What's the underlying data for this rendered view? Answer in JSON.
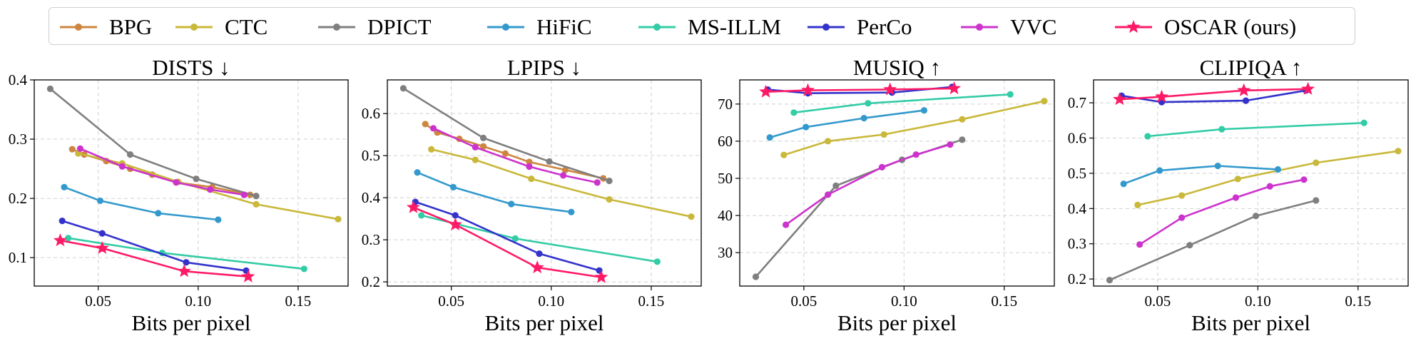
{
  "legend": [
    {
      "name": "BPG",
      "color": "#cd853f",
      "marker": "circle"
    },
    {
      "name": "CTC",
      "color": "#c9b83a",
      "marker": "circle"
    },
    {
      "name": "DPICT",
      "color": "#7f7f7f",
      "marker": "circle"
    },
    {
      "name": "HiFiC",
      "color": "#3399cc",
      "marker": "circle"
    },
    {
      "name": "MS-ILLM",
      "color": "#33cca6",
      "marker": "circle"
    },
    {
      "name": "PerCo",
      "color": "#3333cc",
      "marker": "circle"
    },
    {
      "name": "VVC",
      "color": "#cc33cc",
      "marker": "circle"
    },
    {
      "name": "OSCAR (ours)",
      "color": "#ff1a66",
      "marker": "star"
    }
  ],
  "chart_data": [
    {
      "type": "line",
      "title": "DISTS ↓",
      "xlabel": "Bits per pixel",
      "ylabel": "",
      "xlim": [
        0.018,
        0.175
      ],
      "ylim": [
        0.052,
        0.4
      ],
      "xticks": [
        0.05,
        0.1,
        0.15
      ],
      "xtick_labels": [
        "0.05",
        "0.10",
        "0.15"
      ],
      "yticks": [
        0.1,
        0.2,
        0.3,
        0.4
      ],
      "ytick_labels": [
        "0.1",
        "0.2",
        "0.3",
        "0.4"
      ],
      "grid": true,
      "series": [
        {
          "name": "BPG",
          "x": [
            0.037,
            0.043,
            0.054,
            0.066,
            0.077,
            0.089,
            0.107,
            0.126
          ],
          "y": [
            0.283,
            0.274,
            0.263,
            0.25,
            0.24,
            0.227,
            0.219,
            0.206
          ]
        },
        {
          "name": "CTC",
          "x": [
            0.04,
            0.062,
            0.09,
            0.129,
            0.17
          ],
          "y": [
            0.276,
            0.259,
            0.228,
            0.19,
            0.165
          ]
        },
        {
          "name": "DPICT",
          "x": [
            0.026,
            0.066,
            0.099,
            0.129
          ],
          "y": [
            0.385,
            0.274,
            0.233,
            0.204
          ]
        },
        {
          "name": "HiFiC",
          "x": [
            0.033,
            0.051,
            0.08,
            0.11
          ],
          "y": [
            0.219,
            0.196,
            0.175,
            0.164
          ]
        },
        {
          "name": "MS-ILLM",
          "x": [
            0.035,
            0.082,
            0.153
          ],
          "y": [
            0.133,
            0.108,
            0.081
          ]
        },
        {
          "name": "PerCo",
          "x": [
            0.032,
            0.052,
            0.094,
            0.124
          ],
          "y": [
            0.162,
            0.141,
            0.092,
            0.078
          ]
        },
        {
          "name": "VVC",
          "x": [
            0.041,
            0.062,
            0.089,
            0.106,
            0.123
          ],
          "y": [
            0.284,
            0.254,
            0.227,
            0.215,
            0.206
          ]
        },
        {
          "name": "OSCAR (ours)",
          "x": [
            0.031,
            0.052,
            0.093,
            0.125
          ],
          "y": [
            0.129,
            0.116,
            0.077,
            0.068
          ]
        }
      ]
    },
    {
      "type": "line",
      "title": "LPIPS ↓",
      "xlabel": "Bits per pixel",
      "ylabel": "",
      "xlim": [
        0.018,
        0.175
      ],
      "ylim": [
        0.19,
        0.68
      ],
      "xticks": [
        0.05,
        0.1,
        0.15
      ],
      "xtick_labels": [
        "0.05",
        "0.10",
        "0.15"
      ],
      "yticks": [
        0.2,
        0.3,
        0.4,
        0.5,
        0.6
      ],
      "ytick_labels": [
        "0.2",
        "0.3",
        "0.4",
        "0.5",
        "0.6"
      ],
      "grid": true,
      "series": [
        {
          "name": "BPG",
          "x": [
            0.037,
            0.043,
            0.054,
            0.066,
            0.077,
            0.089,
            0.107,
            0.126
          ],
          "y": [
            0.575,
            0.555,
            0.54,
            0.522,
            0.505,
            0.485,
            0.466,
            0.446
          ]
        },
        {
          "name": "CTC",
          "x": [
            0.04,
            0.062,
            0.09,
            0.129,
            0.17
          ],
          "y": [
            0.515,
            0.49,
            0.445,
            0.396,
            0.355
          ]
        },
        {
          "name": "DPICT",
          "x": [
            0.026,
            0.066,
            0.099,
            0.129
          ],
          "y": [
            0.66,
            0.542,
            0.486,
            0.44
          ]
        },
        {
          "name": "HiFiC",
          "x": [
            0.033,
            0.051,
            0.08,
            0.11
          ],
          "y": [
            0.46,
            0.425,
            0.385,
            0.366
          ]
        },
        {
          "name": "MS-ILLM",
          "x": [
            0.035,
            0.082,
            0.153
          ],
          "y": [
            0.358,
            0.303,
            0.248
          ]
        },
        {
          "name": "PerCo",
          "x": [
            0.032,
            0.052,
            0.094,
            0.124
          ],
          "y": [
            0.39,
            0.358,
            0.267,
            0.227
          ]
        },
        {
          "name": "VVC",
          "x": [
            0.041,
            0.062,
            0.089,
            0.106,
            0.123
          ],
          "y": [
            0.565,
            0.52,
            0.474,
            0.453,
            0.436
          ]
        },
        {
          "name": "OSCAR (ours)",
          "x": [
            0.031,
            0.052,
            0.093,
            0.125
          ],
          "y": [
            0.377,
            0.336,
            0.234,
            0.211
          ]
        }
      ]
    },
    {
      "type": "line",
      "title": "MUSIQ ↑",
      "xlabel": "Bits per pixel",
      "ylabel": "",
      "xlim": [
        0.018,
        0.175
      ],
      "ylim": [
        21,
        76.5
      ],
      "xticks": [
        0.05,
        0.1,
        0.15
      ],
      "xtick_labels": [
        "0.05",
        "0.10",
        "0.15"
      ],
      "yticks": [
        30,
        40,
        50,
        60,
        70
      ],
      "ytick_labels": [
        "30",
        "40",
        "50",
        "60",
        "70"
      ],
      "grid": true,
      "series": [
        {
          "name": "CTC",
          "x": [
            0.04,
            0.062,
            0.09,
            0.129,
            0.17
          ],
          "y": [
            56.3,
            60.0,
            61.8,
            65.9,
            70.8
          ]
        },
        {
          "name": "DPICT",
          "x": [
            0.026,
            0.066,
            0.099,
            0.129
          ],
          "y": [
            23.5,
            48.0,
            55.0,
            60.4
          ]
        },
        {
          "name": "HiFiC",
          "x": [
            0.033,
            0.051,
            0.08,
            0.11
          ],
          "y": [
            61.0,
            63.8,
            66.2,
            68.3
          ]
        },
        {
          "name": "MS-ILLM",
          "x": [
            0.045,
            0.082,
            0.153
          ],
          "y": [
            67.7,
            70.2,
            72.6
          ]
        },
        {
          "name": "PerCo",
          "x": [
            0.032,
            0.052,
            0.094,
            0.124
          ],
          "y": [
            73.9,
            72.9,
            73.1,
            74.6
          ]
        },
        {
          "name": "VVC",
          "x": [
            0.041,
            0.062,
            0.089,
            0.106,
            0.123
          ],
          "y": [
            37.5,
            45.6,
            53.0,
            56.4,
            59.1
          ]
        },
        {
          "name": "OSCAR (ours)",
          "x": [
            0.031,
            0.052,
            0.093,
            0.125
          ],
          "y": [
            73.3,
            73.7,
            73.9,
            74.2
          ]
        }
      ]
    },
    {
      "type": "line",
      "title": "CLIPIQA ↑",
      "xlabel": "Bits per pixel",
      "ylabel": "",
      "xlim": [
        0.018,
        0.175
      ],
      "ylim": [
        0.18,
        0.765
      ],
      "xticks": [
        0.05,
        0.1,
        0.15
      ],
      "xtick_labels": [
        "0.05",
        "0.10",
        "0.15"
      ],
      "yticks": [
        0.2,
        0.3,
        0.4,
        0.5,
        0.6,
        0.7
      ],
      "ytick_labels": [
        "0.2",
        "0.3",
        "0.4",
        "0.5",
        "0.6",
        "0.7"
      ],
      "grid": true,
      "series": [
        {
          "name": "CTC",
          "x": [
            0.04,
            0.062,
            0.09,
            0.129,
            0.17
          ],
          "y": [
            0.41,
            0.437,
            0.484,
            0.53,
            0.563
          ]
        },
        {
          "name": "DPICT",
          "x": [
            0.026,
            0.066,
            0.099,
            0.129
          ],
          "y": [
            0.197,
            0.296,
            0.379,
            0.423
          ]
        },
        {
          "name": "HiFiC",
          "x": [
            0.033,
            0.051,
            0.08,
            0.11
          ],
          "y": [
            0.47,
            0.508,
            0.521,
            0.511
          ]
        },
        {
          "name": "MS-ILLM",
          "x": [
            0.045,
            0.082,
            0.153
          ],
          "y": [
            0.605,
            0.625,
            0.643
          ]
        },
        {
          "name": "PerCo",
          "x": [
            0.032,
            0.052,
            0.094,
            0.124
          ],
          "y": [
            0.72,
            0.702,
            0.706,
            0.735
          ]
        },
        {
          "name": "VVC",
          "x": [
            0.041,
            0.062,
            0.089,
            0.106,
            0.123
          ],
          "y": [
            0.298,
            0.374,
            0.431,
            0.463,
            0.482
          ]
        },
        {
          "name": "OSCAR (ours)",
          "x": [
            0.031,
            0.052,
            0.093,
            0.125
          ],
          "y": [
            0.71,
            0.717,
            0.735,
            0.739
          ]
        }
      ]
    }
  ]
}
